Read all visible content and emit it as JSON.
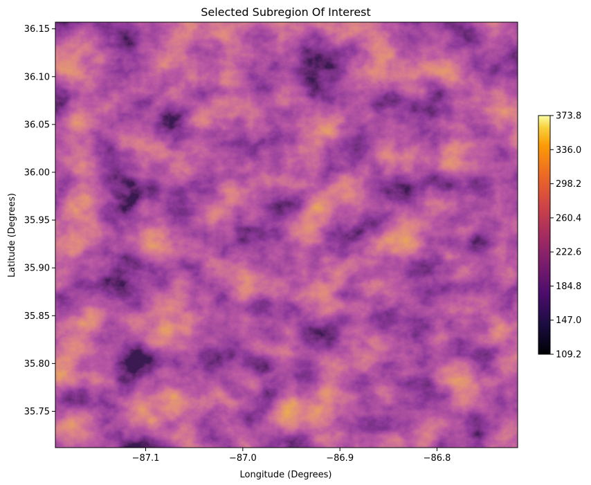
{
  "chart_data": {
    "type": "heatmap",
    "title": "Selected Subregion Of Interest",
    "xlabel": "Longitude (Degrees)",
    "ylabel": "Latitude (Degrees)",
    "xlim": [
      -87.193,
      -86.717
    ],
    "ylim": [
      35.712,
      36.157
    ],
    "xticks": [
      -87.1,
      -87.0,
      -86.9,
      -86.8
    ],
    "xtick_labels": [
      "−87.1",
      "−87.0",
      "−86.9",
      "−86.8"
    ],
    "yticks": [
      35.75,
      35.8,
      35.85,
      35.9,
      35.95,
      36.0,
      36.05,
      36.1,
      36.15
    ],
    "ytick_labels": [
      "35.75",
      "35.80",
      "35.85",
      "35.90",
      "35.95",
      "36.00",
      "36.05",
      "36.10",
      "36.15"
    ],
    "colormap": "inferno",
    "colorbar": {
      "min": 109.2,
      "max": 373.8,
      "ticks": [
        109.2,
        147.0,
        184.8,
        222.6,
        260.4,
        298.2,
        336.0,
        373.8
      ],
      "tick_labels": [
        "109.2",
        "147.0",
        "184.8",
        "222.6",
        "260.4",
        "298.2",
        "336.0",
        "373.8"
      ]
    },
    "grid": false,
    "legend": "colorbar-right"
  }
}
